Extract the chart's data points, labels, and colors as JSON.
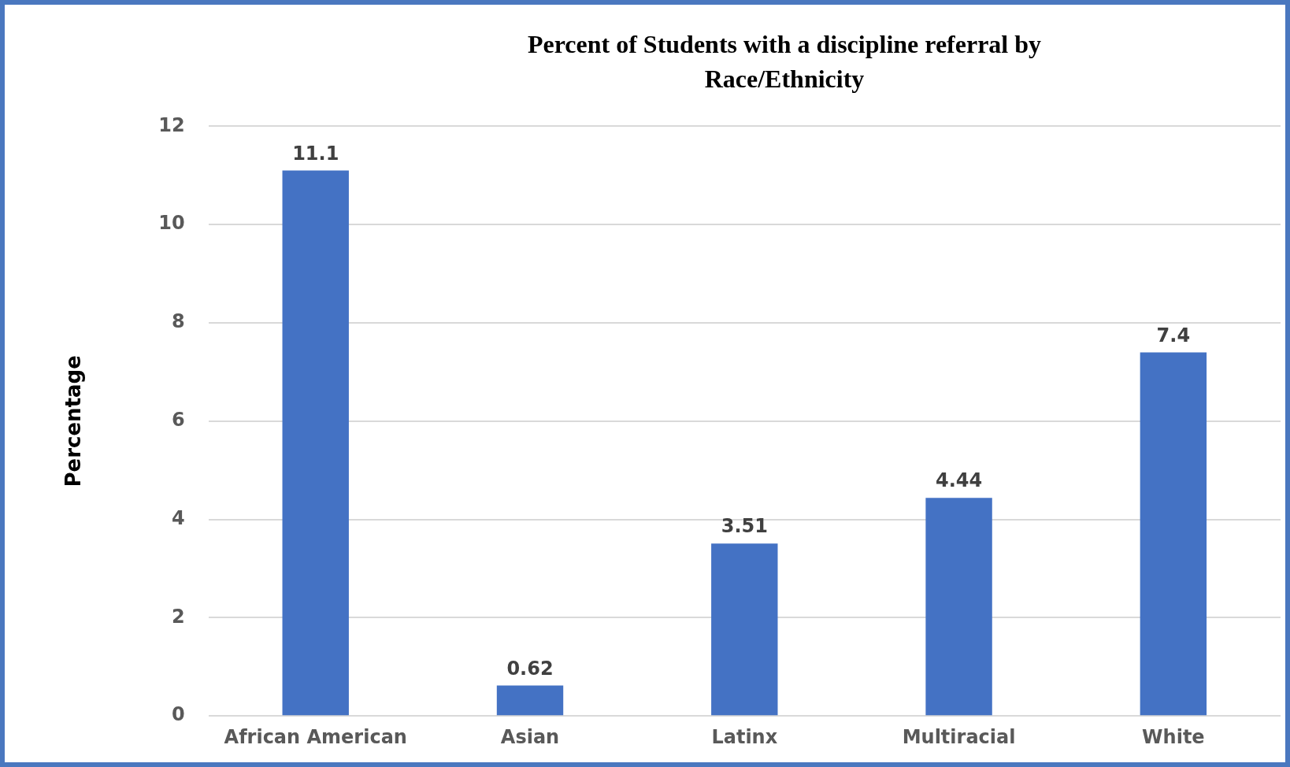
{
  "chart_data": {
    "type": "bar",
    "title": "Percent of Students with a discipline referral by Race/Ethnicity",
    "ylabel": "Percentage",
    "categories": [
      "African American",
      "Asian",
      "Latinx",
      "Multiracial",
      "White"
    ],
    "values": [
      11.1,
      0.62,
      3.51,
      4.44,
      7.4
    ],
    "color": "#4472c4",
    "ylim": [
      0,
      12
    ],
    "yticks": [
      0,
      2,
      4,
      6,
      8,
      10,
      12
    ],
    "grid": "y",
    "data_labels": true,
    "legend": false
  }
}
